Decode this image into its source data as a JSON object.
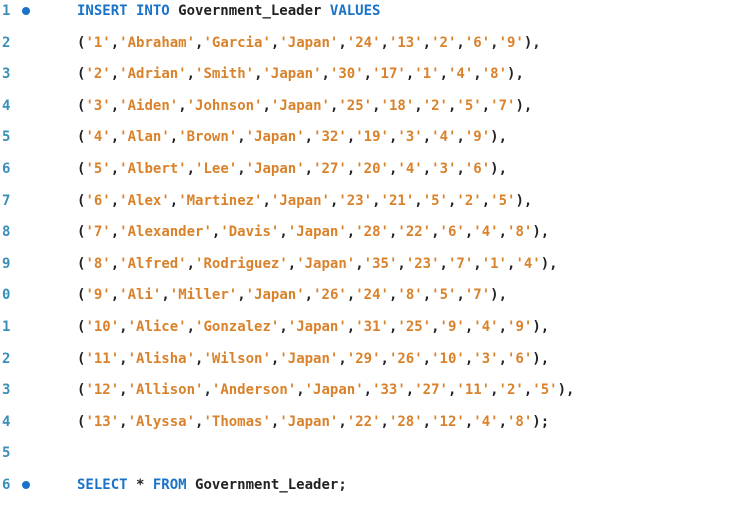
{
  "editor": {
    "lines": [
      {
        "number": "1",
        "marker": true,
        "kind": "insert",
        "kw1": "INSERT INTO",
        "table": "Government_Leader",
        "kw2": "VALUES"
      },
      {
        "number": "2",
        "kind": "row",
        "values": [
          "'1'",
          "'Abraham'",
          "'Garcia'",
          "'Japan'",
          "'24'",
          "'13'",
          "'2'",
          "'6'",
          "'9'"
        ],
        "end": "),"
      },
      {
        "number": "3",
        "kind": "row",
        "values": [
          "'2'",
          "'Adrian'",
          "'Smith'",
          "'Japan'",
          "'30'",
          "'17'",
          "'1'",
          "'4'",
          "'8'"
        ],
        "end": "),"
      },
      {
        "number": "4",
        "kind": "row",
        "values": [
          "'3'",
          "'Aiden'",
          "'Johnson'",
          "'Japan'",
          "'25'",
          "'18'",
          "'2'",
          "'5'",
          "'7'"
        ],
        "end": "),"
      },
      {
        "number": "5",
        "kind": "row",
        "values": [
          "'4'",
          "'Alan'",
          "'Brown'",
          "'Japan'",
          "'32'",
          "'19'",
          "'3'",
          "'4'",
          "'9'"
        ],
        "end": "),"
      },
      {
        "number": "6",
        "kind": "row",
        "values": [
          "'5'",
          "'Albert'",
          "'Lee'",
          "'Japan'",
          "'27'",
          "'20'",
          "'4'",
          "'3'",
          "'6'"
        ],
        "end": "),"
      },
      {
        "number": "7",
        "kind": "row",
        "values": [
          "'6'",
          "'Alex'",
          "'Martinez'",
          "'Japan'",
          "'23'",
          "'21'",
          "'5'",
          "'2'",
          "'5'"
        ],
        "end": "),"
      },
      {
        "number": "8",
        "kind": "row",
        "values": [
          "'7'",
          "'Alexander'",
          "'Davis'",
          "'Japan'",
          "'28'",
          "'22'",
          "'6'",
          "'4'",
          "'8'"
        ],
        "end": "),"
      },
      {
        "number": "9",
        "kind": "row",
        "values": [
          "'8'",
          "'Alfred'",
          "'Rodriguez'",
          "'Japan'",
          "'35'",
          "'23'",
          "'7'",
          "'1'",
          "'4'"
        ],
        "end": "),"
      },
      {
        "number": "0",
        "kind": "row",
        "values": [
          "'9'",
          "'Ali'",
          "'Miller'",
          "'Japan'",
          "'26'",
          "'24'",
          "'8'",
          "'5'",
          "'7'"
        ],
        "end": "),"
      },
      {
        "number": "1",
        "kind": "row",
        "values": [
          "'10'",
          "'Alice'",
          "'Gonzalez'",
          "'Japan'",
          "'31'",
          "'25'",
          "'9'",
          "'4'",
          "'9'"
        ],
        "end": "),"
      },
      {
        "number": "2",
        "kind": "row",
        "values": [
          "'11'",
          "'Alisha'",
          "'Wilson'",
          "'Japan'",
          "'29'",
          "'26'",
          "'10'",
          "'3'",
          "'6'"
        ],
        "end": "),"
      },
      {
        "number": "3",
        "kind": "row",
        "values": [
          "'12'",
          "'Allison'",
          "'Anderson'",
          "'Japan'",
          "'33'",
          "'27'",
          "'11'",
          "'2'",
          "'5'"
        ],
        "end": "),"
      },
      {
        "number": "4",
        "kind": "row",
        "values": [
          "'13'",
          "'Alyssa'",
          "'Thomas'",
          "'Japan'",
          "'22'",
          "'28'",
          "'12'",
          "'4'",
          "'8'"
        ],
        "end": ");"
      },
      {
        "number": "5",
        "kind": "blank"
      },
      {
        "number": "6",
        "marker": true,
        "kind": "select",
        "kw1": "SELECT",
        "star": " * ",
        "kw2": "FROM",
        "table": "Government_Leader",
        "end": ";"
      }
    ]
  },
  "colors": {
    "keyword": "#1a73c9",
    "string": "#d9822b",
    "line_number": "#3a8fb8",
    "text": "#222222"
  }
}
